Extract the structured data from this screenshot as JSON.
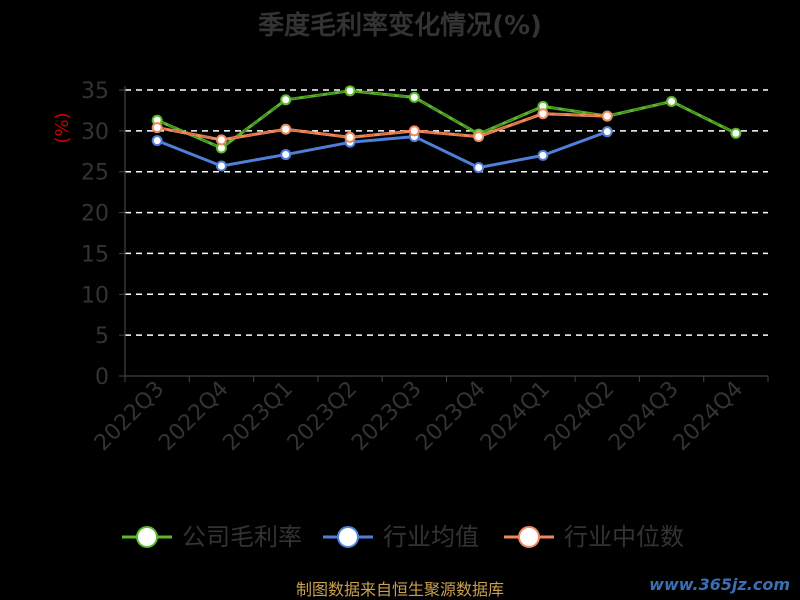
{
  "chart_data": {
    "type": "line",
    "title": "季度毛利率变化情况(%)",
    "ylabel": "(%)",
    "ylim": [
      0,
      35
    ],
    "yticks": [
      0,
      5,
      10,
      15,
      20,
      25,
      30,
      35
    ],
    "grid": true,
    "legend_position": "bottom",
    "categories": [
      "2022Q3",
      "2022Q4",
      "2023Q1",
      "2023Q2",
      "2023Q3",
      "2023Q4",
      "2024Q1",
      "2024Q2",
      "2024Q3",
      "2024Q4"
    ],
    "series": [
      {
        "name": "公司毛利率",
        "color": "#5cb82c",
        "values": [
          31.3,
          27.9,
          33.8,
          34.9,
          34.1,
          29.6,
          33.0,
          31.8,
          33.6,
          29.7
        ]
      },
      {
        "name": "行业均值",
        "color": "#4f7fd8",
        "values": [
          28.8,
          25.7,
          27.1,
          28.6,
          29.3,
          25.5,
          27.0,
          29.9,
          null,
          null
        ]
      },
      {
        "name": "行业中位数",
        "color": "#f08a5d",
        "values": [
          30.4,
          28.9,
          30.2,
          29.2,
          30.0,
          29.3,
          32.1,
          31.8,
          null,
          null
        ]
      }
    ]
  },
  "footer": {
    "source": "制图数据来自恒生聚源数据库",
    "watermark": "www.365jz.com"
  }
}
